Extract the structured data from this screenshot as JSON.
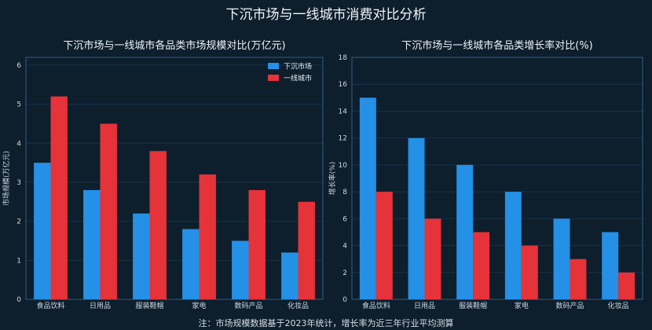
{
  "title": "下沉市场与一线城市消费对比分析",
  "note": "注：市场规模数据基于2023年统计，增长率为近三年行业平均测算",
  "colors": {
    "background": "#0d1e2c",
    "panel_border": "#2e5f86",
    "grid": "#163349",
    "series_a": "#2490e6",
    "series_b": "#e63239"
  },
  "chart_data": [
    {
      "type": "bar",
      "title": "下沉市场与一线城市各品类市场规模对比(万亿元)",
      "xlabel": "",
      "ylabel": "市场规模(万亿元)",
      "ylim": [
        0,
        6.2
      ],
      "yticks": [
        0,
        1,
        2,
        3,
        4,
        5,
        6
      ],
      "grid": true,
      "legend": "top-right",
      "categories": [
        "食品饮料",
        "日用品",
        "服装鞋帽",
        "家电",
        "数码产品",
        "化妆品"
      ],
      "series": [
        {
          "name": "下沉市场",
          "values": [
            3.5,
            2.8,
            2.2,
            1.8,
            1.5,
            1.2
          ]
        },
        {
          "name": "一线城市",
          "values": [
            5.2,
            4.5,
            3.8,
            3.2,
            2.8,
            2.5
          ]
        }
      ]
    },
    {
      "type": "bar",
      "title": "下沉市场与一线城市各品类增长率对比(%)",
      "xlabel": "",
      "ylabel": "增长率(%)",
      "ylim": [
        0,
        18
      ],
      "yticks": [
        0,
        2,
        4,
        6,
        8,
        10,
        12,
        14,
        16,
        18
      ],
      "grid": true,
      "categories": [
        "食品饮料",
        "日用品",
        "服装鞋帽",
        "家电",
        "数码产品",
        "化妆品"
      ],
      "series": [
        {
          "name": "下沉市场",
          "values": [
            15,
            12,
            10,
            8,
            6,
            5
          ]
        },
        {
          "name": "一线城市",
          "values": [
            8,
            6,
            5,
            4,
            3,
            2
          ]
        }
      ]
    }
  ]
}
